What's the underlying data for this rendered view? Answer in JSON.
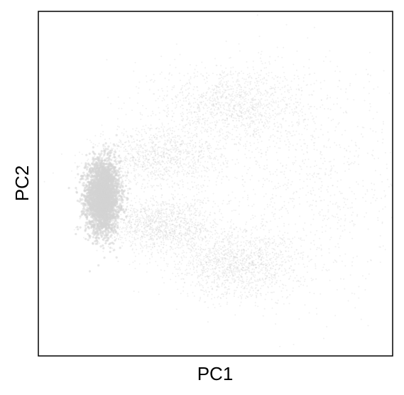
{
  "chart_data": {
    "type": "scatter",
    "xlabel": "PC1",
    "ylabel": "PC2",
    "xlim": [
      -1.0,
      4.5
    ],
    "ylim": [
      -2.5,
      2.9
    ],
    "show_ticks": false,
    "grid": false,
    "legend": "none",
    "point_color": "#d3d3d3",
    "density_clusters": [
      {
        "name": "",
        "x": 0.0,
        "y": 0.0,
        "sx": 0.13,
        "sy": 0.28,
        "weight": 0.35
      },
      {
        "name": "",
        "x": 0.9,
        "y": 0.6,
        "sx": 0.5,
        "sy": 0.25,
        "weight": 0.12
      },
      {
        "name": "",
        "x": 2.0,
        "y": 1.45,
        "sx": 0.6,
        "sy": 0.32,
        "weight": 0.14
      },
      {
        "name": "",
        "x": 0.9,
        "y": -0.45,
        "sx": 0.45,
        "sy": 0.22,
        "weight": 0.14
      },
      {
        "name": "",
        "x": 2.1,
        "y": -1.05,
        "sx": 0.5,
        "sy": 0.28,
        "weight": 0.15
      },
      {
        "name": "",
        "x": 3.2,
        "y": 0.2,
        "sx": 0.8,
        "sy": 0.9,
        "weight": 0.1
      }
    ]
  }
}
